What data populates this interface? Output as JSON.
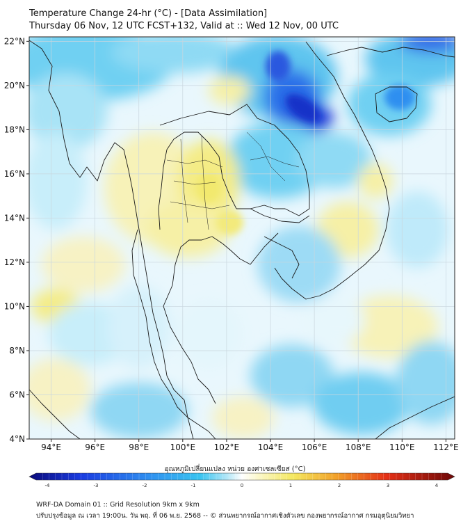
{
  "header": {
    "title": "Temperature Change 24-hr (°C) - [Data Assimilation]",
    "subtitle": "Thursday 06 Nov, 12 UTC FCST+132, Valid at :: Wed 12 Nov, 00 UTC"
  },
  "map": {
    "lat_ticks": [
      "22°N",
      "20°N",
      "18°N",
      "16°N",
      "14°N",
      "12°N",
      "10°N",
      "8°N",
      "6°N",
      "4°N"
    ],
    "lon_ticks": [
      "94°E",
      "96°E",
      "98°E",
      "100°E",
      "102°E",
      "104°E",
      "106°E",
      "108°E",
      "110°E",
      "112°E"
    ],
    "lat_range": [
      4,
      22.2
    ],
    "lon_range": [
      93,
      112.4
    ],
    "colors": {
      "cold_strong": "#0a2bd6",
      "cold": "#3db8ee",
      "cool": "#9be0f6",
      "neutral": "#f3fbff",
      "warm": "#f8f3a8",
      "warm_strong": "#f2ea72",
      "border": "#1a1a1a",
      "grid": "#c9d6de"
    }
  },
  "colorbar": {
    "title": "อุณหภูมิเปลี่ยนแปลง หน่วย องศาเซลเซียส (°C)",
    "ticks": [
      "-4",
      "-3",
      "-2",
      "-1",
      "0",
      "1",
      "2",
      "3",
      "4"
    ],
    "range": [
      -4,
      4
    ]
  },
  "footer": {
    "line1": "WRF-DA Domain 01 :: Grid Resolution 9km x 9km",
    "line2": "ปรับปรุงข้อมูล ณ เวลา 19:00น. วัน พฤ. ที่ 06 พ.ย. 2568 -- © ส่วนพยากรณ์อากาศเชิงตัวเลข กองพยากรณ์อากาศ กรมอุตุนิยมวิทยา"
  }
}
